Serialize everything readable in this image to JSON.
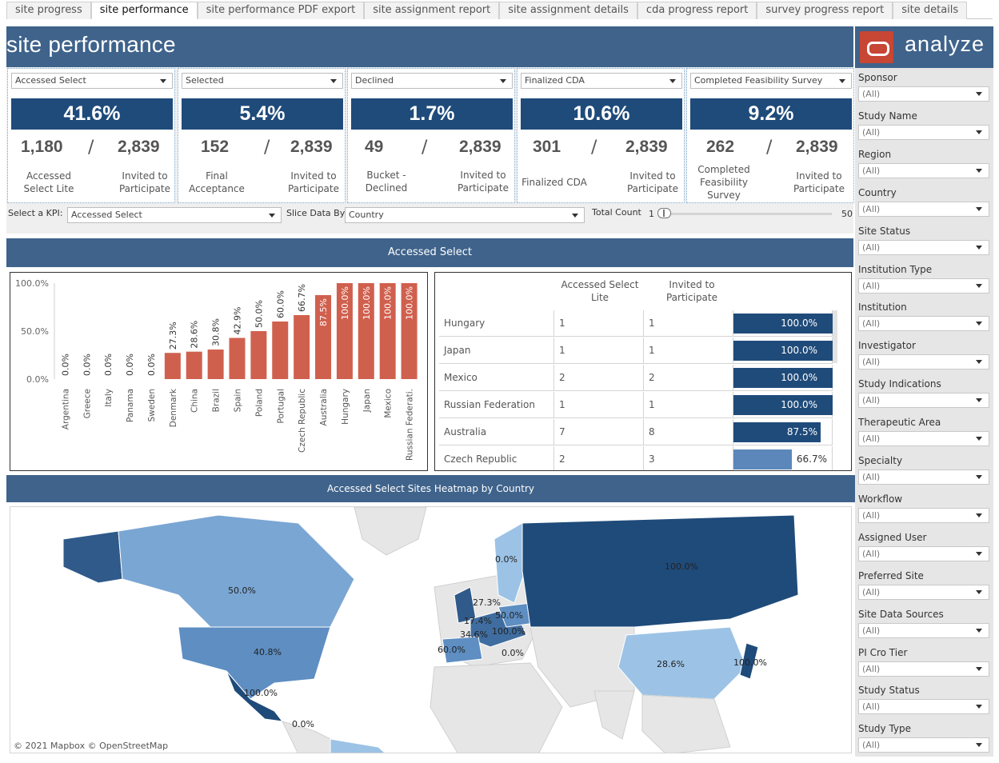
{
  "tabs": [
    "site progress",
    "site performance",
    "site performance PDF export",
    "site assignment report",
    "site assignment details",
    "cda progress report",
    "survey progress report",
    "site details"
  ],
  "active_tab": 1,
  "title": "site performance",
  "kpis": [
    {
      "select": "Accessed Select",
      "pct": "41.6%",
      "num": "1,180",
      "den": "2,839",
      "num_label": "Accessed Select Lite",
      "den_label": "Invited to Participate"
    },
    {
      "select": "Selected",
      "pct": "5.4%",
      "num": "152",
      "den": "2,839",
      "num_label": "Final Acceptance",
      "den_label": "Invited to Participate"
    },
    {
      "select": "Declined",
      "pct": "1.7%",
      "num": "49",
      "den": "2,839",
      "num_label": "Bucket - Declined",
      "den_label": "Invited to Participate"
    },
    {
      "select": "Finalized CDA",
      "pct": "10.6%",
      "num": "301",
      "den": "2,839",
      "num_label": "Finalized CDA",
      "den_label": "Invited to Participate"
    },
    {
      "select": "Completed Feasibility Survey",
      "pct": "9.2%",
      "num": "262",
      "den": "2,839",
      "num_label": "Completed Feasibility Survey",
      "den_label": "Invited to Participate"
    }
  ],
  "controls": {
    "kpi_label": "Select a KPI:",
    "kpi_value": "Accessed Select",
    "slice_label": "Slice Data By:",
    "slice_value": "Country",
    "total_label": "Total Count",
    "slider_min": "1",
    "slider_max": "50"
  },
  "section_title": "Accessed Select",
  "chart_data": {
    "type": "bar",
    "categories": [
      "Argentina",
      "Greece",
      "Italy",
      "Panama",
      "Sweden",
      "Denmark",
      "China",
      "Brazil",
      "Spain",
      "Poland",
      "Portugal",
      "Czech Republic",
      "Australia",
      "Hungary",
      "Japan",
      "Mexico",
      "Russian Federati."
    ],
    "values": [
      0.0,
      0.0,
      0.0,
      0.0,
      0.0,
      27.3,
      28.6,
      30.8,
      42.9,
      50.0,
      60.0,
      66.7,
      87.5,
      100.0,
      100.0,
      100.0,
      100.0
    ],
    "data_labels": [
      "0.0%",
      "0.0%",
      "0.0%",
      "0.0%",
      "0.0%",
      "27.3%",
      "28.6%",
      "30.8%",
      "42.9%",
      "50.0%",
      "60.0%",
      "66.7%",
      "87.5%",
      "100.0%",
      "100.0%",
      "100.0%",
      "100.0%"
    ],
    "yticks": [
      "100.0%",
      "50.0%",
      "0.0%"
    ],
    "ylim": [
      0,
      100
    ],
    "bar_color": "#d0604e"
  },
  "table": {
    "headers": [
      "Accessed Select Lite",
      "Invited to Participate"
    ],
    "rows": [
      {
        "country": "Hungary",
        "a": "1",
        "b": "1",
        "pct_label": "100.0%",
        "pct": 100
      },
      {
        "country": "Japan",
        "a": "1",
        "b": "1",
        "pct_label": "100.0%",
        "pct": 100
      },
      {
        "country": "Mexico",
        "a": "2",
        "b": "2",
        "pct_label": "100.0%",
        "pct": 100
      },
      {
        "country": "Russian Federation",
        "a": "1",
        "b": "1",
        "pct_label": "100.0%",
        "pct": 100
      },
      {
        "country": "Australia",
        "a": "7",
        "b": "8",
        "pct_label": "87.5%",
        "pct": 87.5
      },
      {
        "country": "Czech Republic",
        "a": "2",
        "b": "3",
        "pct_label": "66.7%",
        "pct": 66.7
      }
    ]
  },
  "map": {
    "title": "Accessed Select Sites Heatmap by Country",
    "credit": "© 2021 Mapbox © OpenStreetMap",
    "labels": [
      "50.0%",
      "40.8%",
      "100.0%",
      "0.0%",
      "0.0%",
      "27.3%",
      "17.4%",
      "50.0%",
      "34.6%",
      "100.0%",
      "60.0%",
      "0.0%",
      "100.0%",
      "28.6%",
      "100.0%"
    ]
  },
  "sidebar": {
    "logo": "analyze",
    "filters": [
      {
        "label": "Sponsor",
        "value": "(All)"
      },
      {
        "label": "Study Name",
        "value": "(All)"
      },
      {
        "label": "Region",
        "value": "(All)"
      },
      {
        "label": "Country",
        "value": "(All)"
      },
      {
        "label": "Site Status",
        "value": "(All)"
      },
      {
        "label": "Institution Type",
        "value": "(All)"
      },
      {
        "label": "Institution",
        "value": "(All)"
      },
      {
        "label": "Investigator",
        "value": "(All)"
      },
      {
        "label": "Study Indications",
        "value": "(All)"
      },
      {
        "label": "Therapeutic Area",
        "value": "(All)"
      },
      {
        "label": "Specialty",
        "value": "(All)"
      },
      {
        "label": "Workflow",
        "value": "(All)"
      },
      {
        "label": "Assigned User",
        "value": "(All)"
      },
      {
        "label": "Preferred Site",
        "value": "(All)"
      },
      {
        "label": "Site Data Sources",
        "value": "(All)"
      },
      {
        "label": "PI Cro Tier",
        "value": "(All)"
      },
      {
        "label": "Study Status",
        "value": "(All)"
      },
      {
        "label": "Study Type",
        "value": "(All)"
      }
    ]
  }
}
